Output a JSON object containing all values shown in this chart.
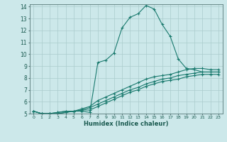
{
  "xlabel": "Humidex (Indice chaleur)",
  "background_color": "#cce8ea",
  "grid_color": "#aacccc",
  "line_color": "#1a7a6e",
  "xlim": [
    -0.5,
    23.5
  ],
  "ylim": [
    5,
    14.2
  ],
  "yticks": [
    5,
    6,
    7,
    8,
    9,
    10,
    11,
    12,
    13,
    14
  ],
  "xticks": [
    0,
    1,
    2,
    3,
    4,
    5,
    6,
    7,
    8,
    9,
    10,
    11,
    12,
    13,
    14,
    15,
    16,
    17,
    18,
    19,
    20,
    21,
    22,
    23
  ],
  "line1_x": [
    0,
    1,
    2,
    3,
    4,
    5,
    6,
    7,
    8,
    9,
    10,
    11,
    12,
    13,
    14,
    15,
    16,
    17,
    18,
    19,
    20,
    21,
    22,
    23
  ],
  "line1_y": [
    5.2,
    5.0,
    5.0,
    5.0,
    5.1,
    5.2,
    5.2,
    5.1,
    9.3,
    9.5,
    10.1,
    12.2,
    13.1,
    13.4,
    14.1,
    13.8,
    12.5,
    11.5,
    9.6,
    8.8,
    8.7,
    8.5,
    8.5,
    8.5
  ],
  "line2_x": [
    0,
    1,
    2,
    3,
    4,
    5,
    6,
    7,
    8,
    9,
    10,
    11,
    12,
    13,
    14,
    15,
    16,
    17,
    18,
    19,
    20,
    21,
    22,
    23
  ],
  "line2_y": [
    5.2,
    5.0,
    5.0,
    5.1,
    5.2,
    5.2,
    5.4,
    5.6,
    6.1,
    6.4,
    6.7,
    7.0,
    7.3,
    7.6,
    7.9,
    8.1,
    8.2,
    8.3,
    8.5,
    8.7,
    8.8,
    8.8,
    8.7,
    8.7
  ],
  "line3_x": [
    0,
    1,
    2,
    3,
    4,
    5,
    6,
    7,
    8,
    9,
    10,
    11,
    12,
    13,
    14,
    15,
    16,
    17,
    18,
    19,
    20,
    21,
    22,
    23
  ],
  "line3_y": [
    5.2,
    5.0,
    5.0,
    5.1,
    5.2,
    5.2,
    5.3,
    5.5,
    5.8,
    6.1,
    6.4,
    6.7,
    7.0,
    7.2,
    7.5,
    7.7,
    7.9,
    8.0,
    8.2,
    8.3,
    8.4,
    8.5,
    8.5,
    8.5
  ],
  "line4_x": [
    0,
    1,
    2,
    3,
    4,
    5,
    6,
    7,
    8,
    9,
    10,
    11,
    12,
    13,
    14,
    15,
    16,
    17,
    18,
    19,
    20,
    21,
    22,
    23
  ],
  "line4_y": [
    5.2,
    5.0,
    5.0,
    5.0,
    5.1,
    5.2,
    5.3,
    5.3,
    5.6,
    5.9,
    6.2,
    6.5,
    6.8,
    7.0,
    7.3,
    7.5,
    7.7,
    7.8,
    7.9,
    8.1,
    8.2,
    8.3,
    8.3,
    8.3
  ]
}
